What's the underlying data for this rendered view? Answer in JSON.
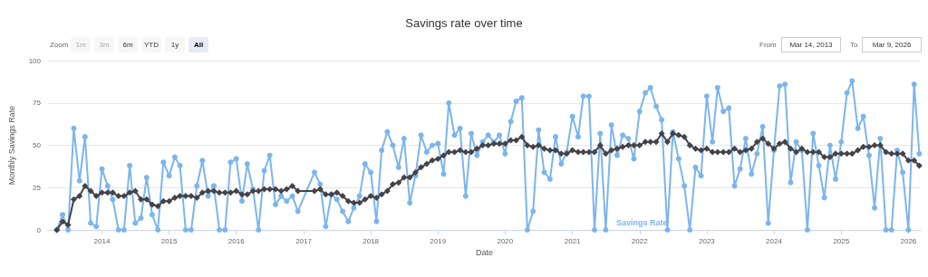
{
  "chart_data": {
    "type": "line",
    "title": "Savings rate over time",
    "xlabel": "Date",
    "ylabel": "Monthly Savings Rate",
    "annotations": [
      "Zoom",
      "1m",
      "3m",
      "6m",
      "YTD",
      "1y",
      "All",
      "From",
      "Mar 14, 2013",
      "To",
      "Mar 9, 2026"
    ],
    "x": [
      "2013-05",
      "2013-06",
      "2013-07",
      "2013-08",
      "2013-09",
      "2013-10",
      "2013-11",
      "2013-12",
      "2014-01",
      "2014-02",
      "2014-03",
      "2014-04",
      "2014-05",
      "2014-06",
      "2014-07",
      "2014-08",
      "2014-09",
      "2014-10",
      "2014-11",
      "2014-12",
      "2015-01",
      "2015-02",
      "2015-03",
      "2015-04",
      "2015-05",
      "2015-06",
      "2015-07",
      "2015-08",
      "2015-09",
      "2015-10",
      "2015-11",
      "2015-12",
      "2016-01",
      "2016-02",
      "2016-03",
      "2016-04",
      "2016-05",
      "2016-06",
      "2016-07",
      "2016-08",
      "2016-09",
      "2016-10",
      "2016-11",
      "2016-12",
      "2017-03",
      "2017-04",
      "2017-05",
      "2017-06",
      "2017-07",
      "2017-08",
      "2017-09",
      "2017-10",
      "2017-11",
      "2017-12",
      "2018-01",
      "2018-02",
      "2018-03",
      "2018-04",
      "2018-05",
      "2018-06",
      "2018-07",
      "2018-08",
      "2018-09",
      "2018-10",
      "2018-11",
      "2018-12",
      "2019-01",
      "2019-02",
      "2019-03",
      "2019-04",
      "2019-05",
      "2019-06",
      "2019-07",
      "2019-08",
      "2019-09",
      "2019-10",
      "2019-11",
      "2019-12",
      "2020-01",
      "2020-02",
      "2020-03",
      "2020-04",
      "2020-05",
      "2020-06",
      "2020-07",
      "2020-08",
      "2020-09",
      "2020-10",
      "2020-11",
      "2020-12",
      "2021-01",
      "2021-02",
      "2021-03",
      "2021-04",
      "2021-05",
      "2021-06",
      "2021-07",
      "2021-08",
      "2021-09",
      "2021-10",
      "2021-11",
      "2021-12",
      "2022-01",
      "2022-02",
      "2022-03",
      "2022-04",
      "2022-05",
      "2022-06",
      "2022-07",
      "2022-08",
      "2022-09",
      "2022-10",
      "2022-11",
      "2022-12",
      "2023-01",
      "2023-02",
      "2023-03",
      "2023-04",
      "2023-05",
      "2023-06",
      "2023-07",
      "2023-08",
      "2023-09",
      "2023-10",
      "2023-11",
      "2023-12",
      "2024-01",
      "2024-02",
      "2024-03",
      "2024-04",
      "2024-05",
      "2024-06",
      "2024-07",
      "2024-08",
      "2024-09",
      "2024-10",
      "2024-11",
      "2024-12",
      "2025-01",
      "2025-02",
      "2025-03",
      "2025-04",
      "2025-05",
      "2025-06",
      "2025-07",
      "2025-08",
      "2025-09",
      "2025-10",
      "2025-11",
      "2025-12",
      "2026-01",
      "2026-02",
      "2026-03"
    ],
    "series": [
      {
        "name": "Savings Rate",
        "color": "#7cb5ec",
        "marker": "circle",
        "values": [
          0,
          9,
          0,
          60,
          29,
          55,
          4,
          2,
          36,
          26,
          18,
          0,
          0,
          38,
          4,
          7,
          31,
          9,
          0,
          40,
          32,
          43,
          38,
          0,
          0,
          26,
          41,
          20,
          26,
          0,
          0,
          40,
          42,
          17,
          39,
          24,
          0,
          35,
          44,
          15,
          20,
          17,
          20,
          11,
          34,
          27,
          2,
          21,
          18,
          11,
          5,
          13,
          20,
          39,
          34,
          5,
          47,
          58,
          50,
          37,
          54,
          16,
          32,
          56,
          46,
          50,
          51,
          33,
          75,
          56,
          60,
          20,
          57,
          44,
          52,
          56,
          52,
          56,
          45,
          64,
          76,
          78,
          0,
          11,
          59,
          34,
          30,
          55,
          39,
          46,
          67,
          55,
          79,
          79,
          0,
          57,
          0,
          62,
          44,
          56,
          54,
          42,
          70,
          81,
          84,
          73,
          65,
          0,
          58,
          42,
          26,
          0,
          37,
          32,
          79,
          52,
          84,
          70,
          72,
          26,
          36,
          54,
          33,
          45,
          61,
          4,
          47,
          85,
          86,
          28,
          52,
          47,
          0,
          57,
          38,
          19,
          50,
          30,
          52,
          81,
          88,
          60,
          67,
          44,
          13,
          54,
          0,
          0,
          47,
          34,
          0,
          86,
          45
        ]
      },
      {
        "color": "#434348",
        "marker": "diamond",
        "values": [
          0,
          5,
          3,
          18,
          20,
          26,
          23,
          20,
          22,
          22,
          22,
          20,
          20,
          22,
          23,
          18,
          18,
          15,
          14,
          17,
          17,
          19,
          20,
          20,
          20,
          19,
          22,
          23,
          23,
          22,
          22,
          22,
          23,
          21,
          21,
          23,
          23,
          24,
          24,
          24,
          23,
          24,
          26,
          23,
          23,
          24,
          21,
          21,
          22,
          20,
          17,
          16,
          16,
          18,
          20,
          19,
          21,
          23,
          27,
          28,
          31,
          31,
          34,
          37,
          39,
          41,
          42,
          44,
          46,
          46,
          47,
          46,
          46,
          48,
          50,
          50,
          51,
          51,
          51,
          53,
          53,
          55,
          50,
          49,
          50,
          48,
          47,
          47,
          45,
          45,
          47,
          46,
          46,
          46,
          46,
          50,
          45,
          47,
          48,
          49,
          50,
          50,
          50,
          52,
          52,
          52,
          57,
          52,
          57,
          56,
          55,
          50,
          48,
          47,
          48,
          46,
          46,
          46,
          46,
          48,
          46,
          47,
          48,
          52,
          54,
          51,
          48,
          51,
          52,
          48,
          46,
          48,
          46,
          46,
          46,
          43,
          43,
          45,
          45,
          45,
          45,
          47,
          49,
          49,
          50,
          50,
          46,
          45,
          45,
          45,
          41,
          41,
          38
        ]
      }
    ],
    "xlim": [
      "2013-03-14",
      "2026-03-09"
    ],
    "xticks": [
      "2014",
      "2015",
      "2016",
      "2017",
      "2018",
      "2019",
      "2020",
      "2021",
      "2022",
      "2023",
      "2024",
      "2025",
      "2026"
    ],
    "ylim": [
      0,
      100
    ],
    "yticks": [
      0,
      25,
      50,
      75,
      100
    ],
    "grid": "y",
    "legend": false,
    "line_style": "solid"
  }
}
